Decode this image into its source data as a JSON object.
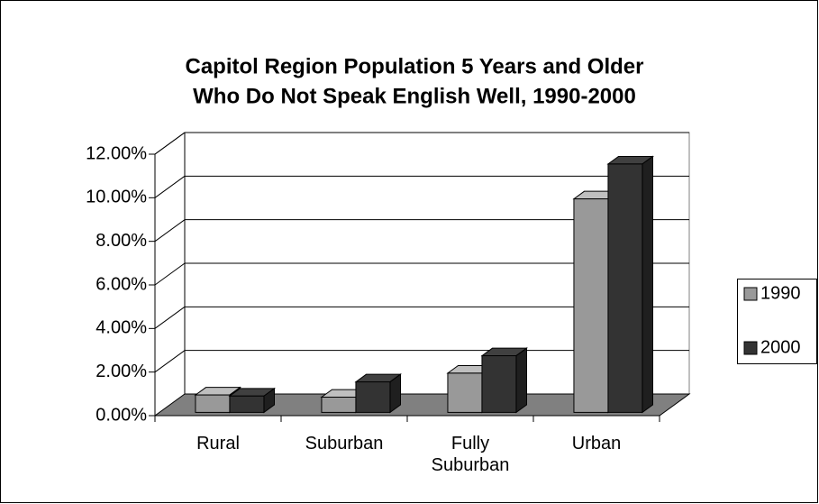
{
  "chart_data": {
    "type": "bar3d",
    "title": [
      "Capitol Region Population 5 Years and Older",
      "Who Do Not Speak English Well, 1990-2000"
    ],
    "categories": [
      "Rural",
      "Suburban",
      "Fully Suburban",
      "Urban"
    ],
    "series": [
      {
        "name": "1990",
        "color": "#999999",
        "values": [
          0.8,
          0.7,
          1.8,
          9.8
        ]
      },
      {
        "name": "2000",
        "color": "#333333",
        "values": [
          0.75,
          1.4,
          2.6,
          11.4
        ]
      }
    ],
    "ylim": [
      0,
      12
    ],
    "yticks": [
      {
        "value": 0,
        "label": "0.00%"
      },
      {
        "value": 2,
        "label": "2.00%"
      },
      {
        "value": 4,
        "label": "4.00%"
      },
      {
        "value": 6,
        "label": "6.00%"
      },
      {
        "value": 8,
        "label": "8.00%"
      },
      {
        "value": 10,
        "label": "10.00%"
      },
      {
        "value": 12,
        "label": "12.00%"
      }
    ],
    "grid": true,
    "legend": "right"
  }
}
